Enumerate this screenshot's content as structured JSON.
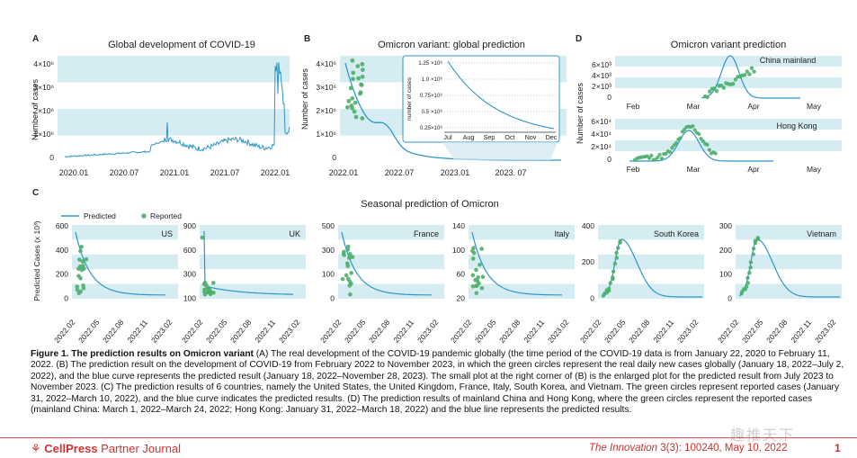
{
  "panels": {
    "A": {
      "letter": "A",
      "title": "Global development of COVID-19",
      "ylabel": "Number of cases",
      "yticks": [
        "4×10⁶",
        "3×10⁶",
        "2×10⁶",
        "1×10⁶",
        "0"
      ],
      "xticks": [
        "2020.01",
        "2020.07",
        "2021.01",
        "2021.07",
        "2022.01"
      ]
    },
    "B": {
      "letter": "B",
      "title": "Omicron variant: global prediction",
      "ylabel": "Number of cases",
      "yticks": [
        "4×10⁶",
        "3×10⁶",
        "2×10⁶",
        "1×10⁶",
        "0"
      ],
      "xticks": [
        "2022.01",
        "2022.07",
        "2023.01",
        "2023. 07"
      ],
      "inset": {
        "ylabel": "number of cases",
        "yticks": [
          "1.25 ×10⁶",
          "1.0 ×10⁶",
          "0.75×10⁶",
          "0.5 ×10⁶",
          "0.25×10⁶"
        ],
        "xticks": [
          "Jul",
          "Aug",
          "Sep",
          "Oct",
          "Nov",
          "Dec"
        ]
      }
    },
    "D": {
      "letter": "D",
      "title": "Omicron variant prediction",
      "ylabel": "Number of cases",
      "top": {
        "label": "China mainland",
        "yticks": [
          "6×10³",
          "4×10³",
          "2×10³",
          "0"
        ]
      },
      "bottom": {
        "label": "Hong Kong",
        "yticks": [
          "6×10⁴",
          "4×10⁴",
          "2×10⁴",
          "0"
        ]
      },
      "xticks": [
        "Feb",
        "Mar",
        "Apr",
        "May"
      ]
    },
    "C": {
      "letter": "C",
      "title": "Seasonal prediction of Omicron",
      "ylabel": "Predicted Cases (x 10³)",
      "legend": {
        "predicted": "Predicted",
        "reported": "Reported"
      },
      "xticks": [
        "2022.02",
        "2022.05",
        "2022.08",
        "2022.11",
        "2023.02"
      ],
      "countries": [
        {
          "name": "US",
          "yticks": [
            "600",
            "400",
            "200",
            "0"
          ]
        },
        {
          "name": "UK",
          "yticks": [
            "900",
            "600",
            "300",
            "100"
          ]
        },
        {
          "name": "France",
          "yticks": [
            "500",
            "300",
            "100",
            "0"
          ]
        },
        {
          "name": "Italy",
          "yticks": [
            "140",
            "100",
            "60",
            "20"
          ]
        },
        {
          "name": "South Korea",
          "yticks": [
            "400",
            "200",
            "0"
          ]
        },
        {
          "name": "Vietnam",
          "yticks": [
            "300",
            "200",
            "100",
            "0"
          ]
        }
      ]
    }
  },
  "caption": {
    "label": "Figure 1.  The prediction results on Omicron variant",
    "text": " (A) The real development of the COVID-19 pandemic globally (the time period of the COVID-19 data is from January 22, 2020 to February 11, 2022. (B) The prediction result on the development of COVID-19 from February 2022 to November 2023, in which the green circles represent the real daily new cases globally (January 18, 2022–July 2, 2022), and the blue curve represents the predicted result (January 18, 2022–November 28, 2023). The small plot at the right corner of (B) is the enlarged plot for the predicted result from July 2023 to November 2023. (C) The prediction results of 6 countries, namely the United States, the United Kingdom, France, Italy, South Korea, and Vietnam. The green circles represent reported cases (January 31, 2022–March 10, 2022), and the blue curve indicates the predicted results. (D) The prediction results of mainland China and Hong Kong, where the green circles represent the reported cases (mainland China: March 1, 2022–March 24, 2022; Hong Kong: January 31, 2022–March 18, 2022) and the blue line represents the predicted results."
  },
  "footer": {
    "publisher_bold": "CellPress",
    "publisher_rest": " Partner Journal",
    "journal": "The Innovation",
    "citation": " 3(3): 100240, May 10, 2022",
    "page": "1"
  },
  "watermark": "趣推天下",
  "colors": {
    "band": "#d6ecf3",
    "line": "#2f95c9",
    "dot": "#4daf6a",
    "accent": "#c8312d"
  }
}
